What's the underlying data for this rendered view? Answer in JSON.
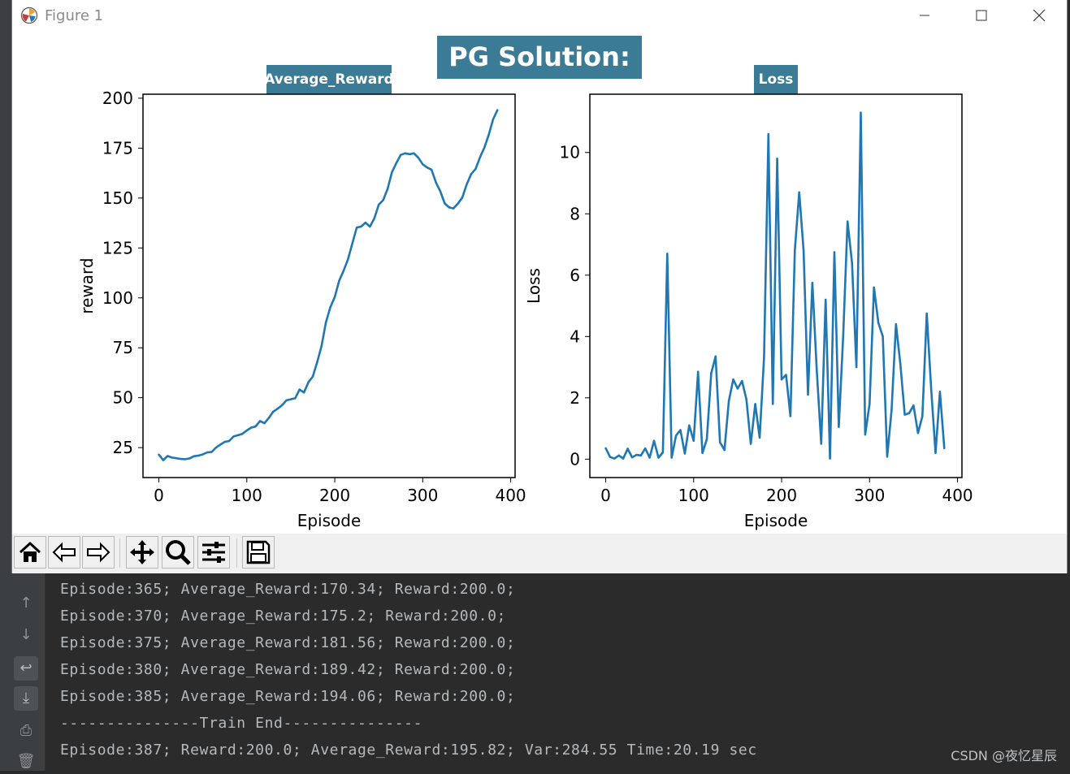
{
  "window": {
    "title": "Figure 1"
  },
  "figure": {
    "suptitle": "PG Solution:",
    "accent": "#3b7b96",
    "line_color": "#1f77b4"
  },
  "chart_data": [
    {
      "type": "line",
      "title": "Average_Reward",
      "xlabel": "Episode",
      "ylabel": "reward",
      "xlim": [
        -18,
        405
      ],
      "ylim": [
        10,
        202
      ],
      "xticks": [
        0,
        100,
        200,
        300,
        400
      ],
      "yticks": [
        25,
        50,
        75,
        100,
        125,
        150,
        175,
        200
      ],
      "grid": false,
      "x": [
        0,
        5,
        10,
        15,
        20,
        25,
        30,
        35,
        40,
        45,
        50,
        55,
        60,
        65,
        70,
        75,
        80,
        85,
        90,
        95,
        100,
        105,
        110,
        115,
        120,
        125,
        130,
        135,
        140,
        145,
        150,
        155,
        160,
        165,
        170,
        175,
        180,
        185,
        190,
        195,
        200,
        205,
        210,
        215,
        220,
        225,
        230,
        235,
        240,
        245,
        250,
        255,
        260,
        265,
        270,
        275,
        280,
        285,
        290,
        295,
        300,
        305,
        310,
        315,
        320,
        325,
        330,
        335,
        340,
        345,
        350,
        355,
        360,
        365,
        370,
        375,
        380,
        385
      ],
      "values": [
        21.5,
        18.7,
        20.8,
        20.0,
        19.7,
        19.3,
        19.2,
        19.6,
        20.7,
        21.0,
        21.6,
        22.6,
        22.8,
        25.0,
        26.5,
        27.9,
        28.3,
        30.6,
        31.2,
        31.9,
        33.6,
        35.0,
        35.6,
        38.3,
        37.2,
        39.8,
        43.0,
        44.5,
        46.2,
        48.7,
        49.2,
        49.7,
        54.1,
        52.6,
        57.7,
        60.6,
        67.8,
        76.0,
        87.8,
        95.3,
        100.4,
        108.6,
        113.6,
        119.3,
        127.3,
        135.2,
        135.7,
        137.7,
        135.7,
        139.9,
        146.7,
        148.9,
        154.5,
        162.9,
        167.5,
        171.6,
        172.4,
        172.0,
        172.4,
        170.2,
        166.9,
        165.3,
        164.2,
        157.8,
        153.3,
        147.3,
        145.3,
        144.8,
        147.2,
        150.2,
        156.8,
        162.0,
        164.5,
        170.3,
        175.2,
        181.6,
        189.4,
        194.1
      ]
    },
    {
      "type": "line",
      "title": "Loss",
      "xlabel": "Episode",
      "ylabel": "Loss",
      "xlim": [
        -18,
        405
      ],
      "ylim": [
        -0.6,
        11.9
      ],
      "xticks": [
        0,
        100,
        200,
        300,
        400
      ],
      "yticks": [
        0,
        2,
        4,
        6,
        8,
        10
      ],
      "grid": false,
      "x": [
        0,
        5,
        10,
        15,
        20,
        25,
        30,
        35,
        40,
        45,
        50,
        55,
        60,
        65,
        70,
        75,
        80,
        85,
        90,
        95,
        100,
        105,
        110,
        115,
        120,
        125,
        130,
        135,
        140,
        145,
        150,
        155,
        160,
        165,
        170,
        175,
        180,
        185,
        190,
        195,
        200,
        205,
        210,
        215,
        220,
        225,
        230,
        235,
        240,
        245,
        250,
        255,
        260,
        265,
        270,
        275,
        280,
        285,
        290,
        295,
        300,
        305,
        310,
        315,
        320,
        325,
        330,
        335,
        340,
        345,
        350,
        355,
        360,
        365,
        370,
        375,
        380,
        385
      ],
      "values": [
        0.36,
        0.07,
        0.02,
        0.12,
        0.02,
        0.34,
        0.06,
        0.14,
        0.12,
        0.35,
        0.05,
        0.6,
        0.05,
        0.22,
        6.7,
        0.05,
        0.77,
        0.95,
        0.18,
        1.1,
        0.6,
        2.85,
        0.2,
        0.65,
        2.8,
        3.35,
        0.55,
        0.3,
        1.9,
        2.6,
        2.3,
        2.55,
        1.95,
        0.5,
        1.8,
        0.7,
        3.3,
        10.6,
        1.8,
        9.8,
        2.6,
        2.75,
        1.4,
        6.8,
        8.7,
        6.8,
        2.1,
        5.75,
        2.9,
        0.5,
        5.2,
        0.02,
        6.75,
        1.05,
        4.0,
        7.75,
        6.4,
        3.0,
        11.3,
        0.8,
        1.8,
        5.6,
        4.45,
        4.0,
        0.08,
        1.6,
        4.4,
        3.1,
        1.45,
        1.5,
        1.75,
        0.85,
        1.4,
        4.75,
        2.3,
        0.2,
        2.2,
        0.35
      ]
    }
  ],
  "toolbar": {
    "buttons": [
      "home-icon",
      "back-icon",
      "forward-icon",
      "pan-icon",
      "zoom-icon",
      "configure-subplots-icon",
      "save-icon"
    ]
  },
  "console": {
    "lines": [
      "Episode:365; Average_Reward:170.34; Reward:200.0;",
      "Episode:370; Average_Reward:175.2; Reward:200.0;",
      "Episode:375; Average_Reward:181.56; Reward:200.0;",
      "Episode:380; Average_Reward:189.42; Reward:200.0;",
      "Episode:385; Average_Reward:194.06; Reward:200.0;",
      "---------------Train End---------------",
      "Episode:387; Reward:200.0; Average_Reward:195.82; Var:284.55 Time:20.19 sec"
    ],
    "text_color": "#b6b9bc"
  },
  "watermark": "CSDN @夜忆星辰"
}
